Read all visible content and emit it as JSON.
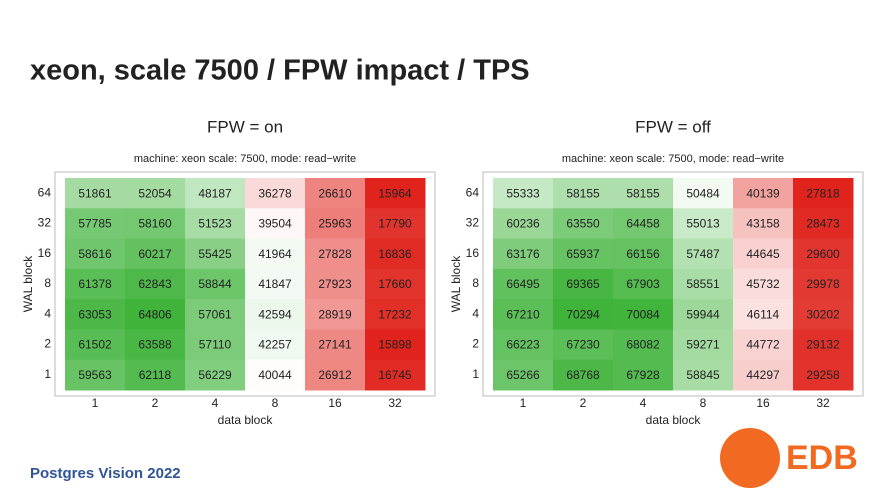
{
  "title": "xeon, scale 7500 / FPW impact / TPS",
  "footer": "Postgres Vision 2022",
  "logo": "EDB",
  "chart_data": [
    {
      "type": "heatmap",
      "title": "FPW = on",
      "subtitle": "machine: xeon scale: 7500, mode: read−write",
      "x_label": "data block",
      "y_label": "WAL block",
      "x_categories": [
        "1",
        "2",
        "4",
        "8",
        "16",
        "32"
      ],
      "y_categories": [
        "64",
        "32",
        "16",
        "8",
        "4",
        "2",
        "1"
      ],
      "color_scale": [
        "#e0231c",
        "#ffffff",
        "#3fb33a"
      ],
      "values": [
        [
          51861,
          52054,
          48187,
          36278,
          26610,
          15964
        ],
        [
          57785,
          58160,
          51523,
          39504,
          25963,
          17790
        ],
        [
          58616,
          60217,
          55425,
          41964,
          27828,
          16836
        ],
        [
          61378,
          62843,
          58844,
          41847,
          27923,
          17660
        ],
        [
          63053,
          64806,
          57061,
          42594,
          28919,
          17232
        ],
        [
          61502,
          63588,
          57110,
          42257,
          27141,
          15898
        ],
        [
          59563,
          62118,
          56229,
          40044,
          26912,
          16745
        ]
      ]
    },
    {
      "type": "heatmap",
      "title": "FPW = off",
      "subtitle": "machine: xeon scale: 7500, mode: read−write",
      "x_label": "data block",
      "y_label": "WAL block",
      "x_categories": [
        "1",
        "2",
        "4",
        "8",
        "16",
        "32"
      ],
      "y_categories": [
        "64",
        "32",
        "16",
        "8",
        "4",
        "2",
        "1"
      ],
      "color_scale": [
        "#e0231c",
        "#ffffff",
        "#3fb33a"
      ],
      "values": [
        [
          55333,
          58155,
          58155,
          50484,
          40139,
          27818
        ],
        [
          60236,
          63550,
          64458,
          55013,
          43158,
          28473
        ],
        [
          63176,
          65937,
          66156,
          57487,
          44645,
          29600
        ],
        [
          66495,
          69365,
          67903,
          58551,
          45732,
          29978
        ],
        [
          67210,
          70294,
          70084,
          59944,
          46114,
          30202
        ],
        [
          66223,
          67230,
          68082,
          59271,
          44772,
          29132
        ],
        [
          65266,
          68768,
          67928,
          58845,
          44297,
          29258
        ]
      ]
    }
  ]
}
